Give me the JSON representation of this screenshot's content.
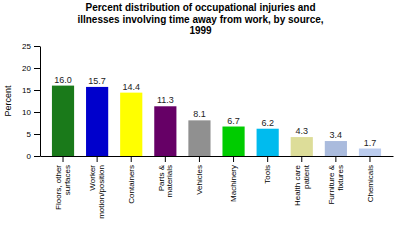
{
  "chart_data": {
    "type": "bar",
    "title": "Percent distribution of occupational injuries and\nillnesses involving time away from work, by source,\n1999",
    "categories": [
      "Floors, other\nsurfaces",
      "Worker\nmotion/position",
      "Containers",
      "Parts &\nmaterials",
      "Vehicles",
      "Machinery",
      "Tools",
      "Health care\npatient",
      "Furniture &\nfixtures",
      "Chemicals"
    ],
    "values": [
      16.0,
      15.7,
      14.4,
      11.3,
      8.1,
      6.7,
      6.2,
      4.3,
      3.4,
      1.7
    ],
    "value_labels": [
      "16.0",
      "15.7",
      "14.4",
      "11.3",
      "8.1",
      "6.7",
      "6.2",
      "4.3",
      "3.4",
      "1.7"
    ],
    "colors": [
      "#1a7a1a",
      "#0000cc",
      "#ffff00",
      "#660066",
      "#909090",
      "#00cc00",
      "#00bbee",
      "#dddd99",
      "#aabbdd",
      "#bbccee"
    ],
    "ylabel": "Percent",
    "ylim": [
      0,
      25
    ],
    "yticks": [
      0,
      5,
      10,
      15,
      20,
      25
    ],
    "data_labels": true,
    "grid": false
  }
}
